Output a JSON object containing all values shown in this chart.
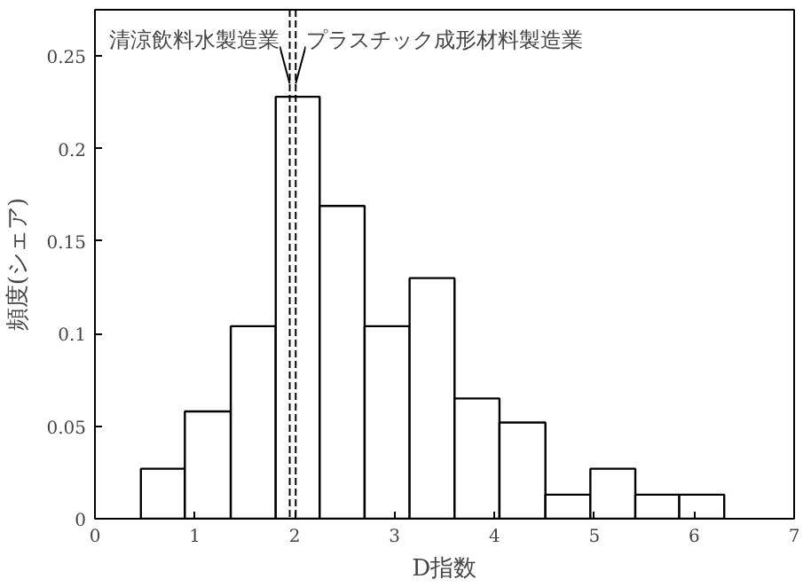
{
  "chart_data": {
    "type": "histogram",
    "xlabel": "D指数",
    "ylabel": "頻度(シェア)",
    "bins": [
      0.46,
      0.9,
      1.36,
      1.81,
      2.25,
      2.7,
      3.15,
      3.6,
      4.05,
      4.51,
      4.96,
      5.41,
      5.85,
      6.3
    ],
    "values": [
      0.027,
      0.058,
      0.104,
      0.228,
      0.169,
      0.104,
      0.13,
      0.065,
      0.052,
      0.013,
      0.027,
      0.013,
      0.013
    ],
    "color": "#ffffff",
    "xlim": [
      0,
      7
    ],
    "xticks": [
      0,
      1,
      2,
      3,
      4,
      5,
      6,
      7
    ],
    "ylim": [
      0,
      0.275
    ],
    "yticks": [
      0,
      0.05,
      0.1,
      0.15,
      0.2,
      0.25
    ],
    "ref_lines": [
      {
        "axis": "x",
        "value": 1.95,
        "label": "清涼飲料水製造業",
        "line_style": "dashed",
        "color": "#000000"
      },
      {
        "axis": "x",
        "value": 2.01,
        "label": "プラスチック成形材料製造業",
        "line_style": "dashed",
        "color": "#000000"
      }
    ],
    "grid": false
  }
}
